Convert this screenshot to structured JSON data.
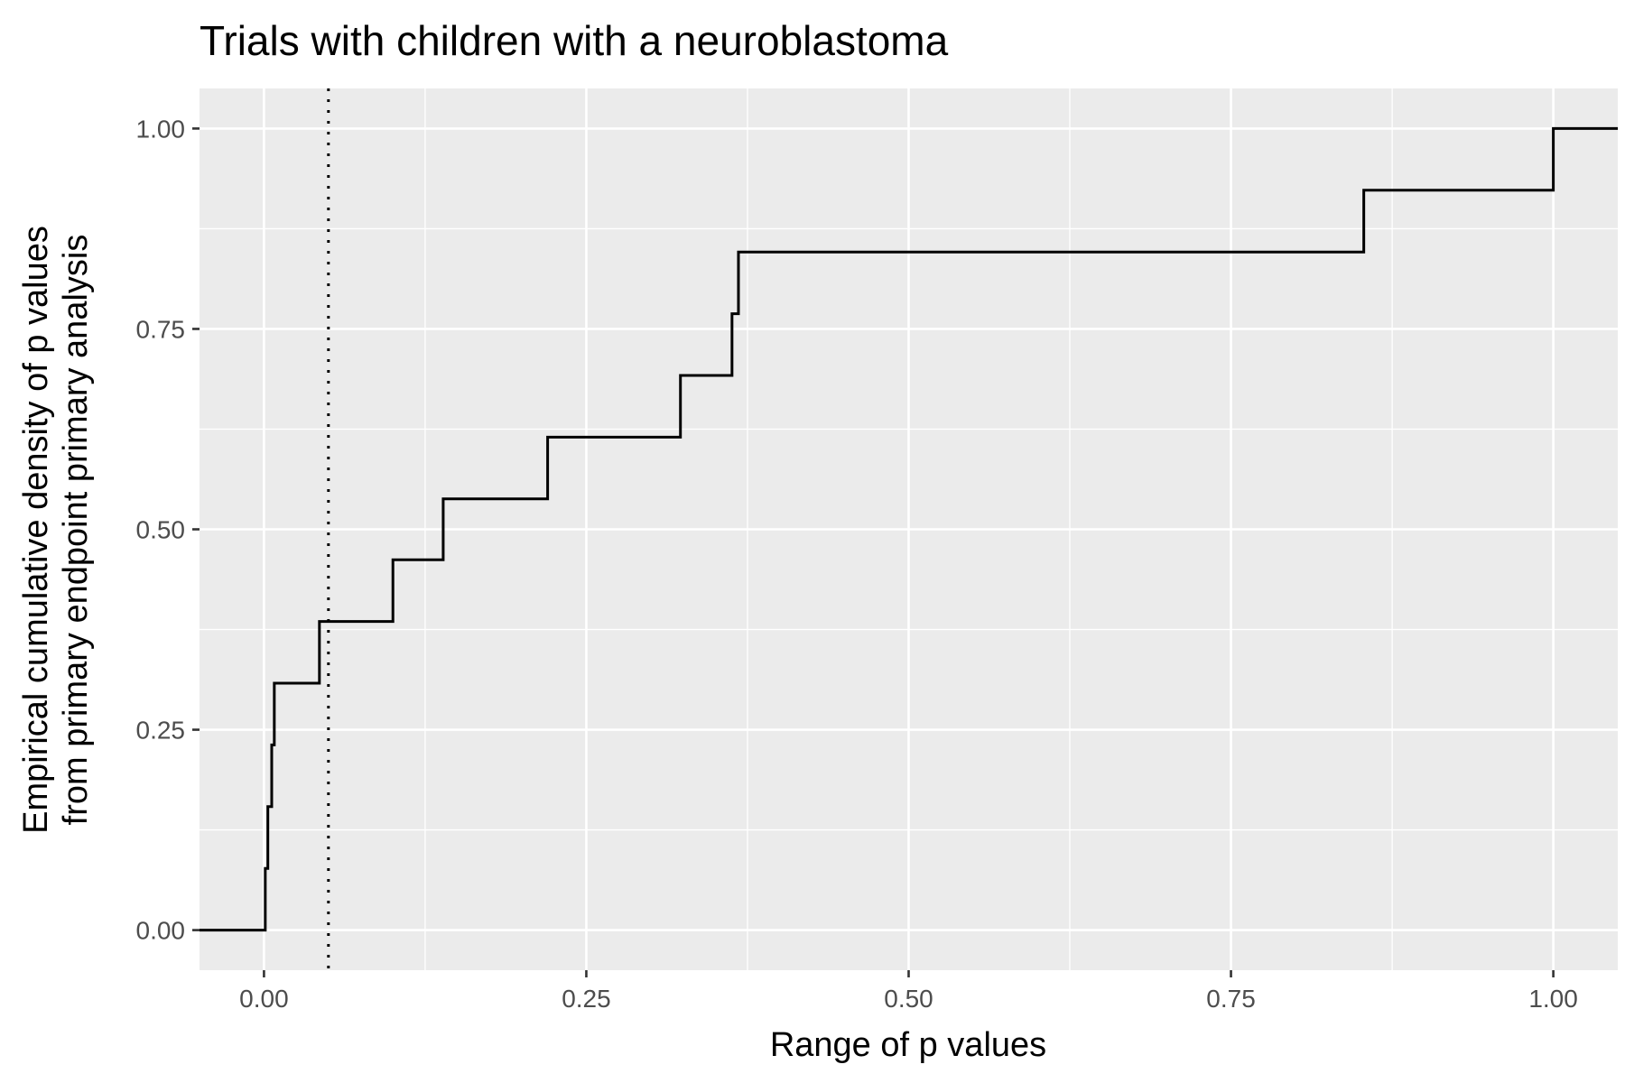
{
  "chart_data": {
    "type": "line",
    "title": "Trials with children with a neuroblastoma",
    "xlabel": "Range of p values",
    "ylabel_lines": [
      "Empirical cumulative density of p values",
      "from primary endpoint primary analysis"
    ],
    "xlim": [
      -0.05,
      1.05
    ],
    "ylim": [
      -0.05,
      1.05
    ],
    "x_ticks": [
      0,
      0.25,
      0.5,
      0.75,
      1
    ],
    "x_tick_labels": [
      "0.00",
      "0.25",
      "0.50",
      "0.75",
      "1.00"
    ],
    "y_ticks": [
      0,
      0.25,
      0.5,
      0.75,
      1
    ],
    "y_tick_labels": [
      "0.00",
      "0.25",
      "0.50",
      "0.75",
      "1.00"
    ],
    "grid": true,
    "reference_line": {
      "x": 0.05,
      "style": "dotted"
    },
    "series": [
      {
        "step": true,
        "x": [
          0.001,
          0.003,
          0.006,
          0.008,
          0.043,
          0.1,
          0.139,
          0.22,
          0.323,
          0.363,
          0.368,
          0.853,
          1.0
        ],
        "y": [
          0.077,
          0.154,
          0.231,
          0.308,
          0.385,
          0.462,
          0.538,
          0.615,
          0.692,
          0.769,
          0.846,
          0.923,
          1.0
        ]
      }
    ]
  }
}
